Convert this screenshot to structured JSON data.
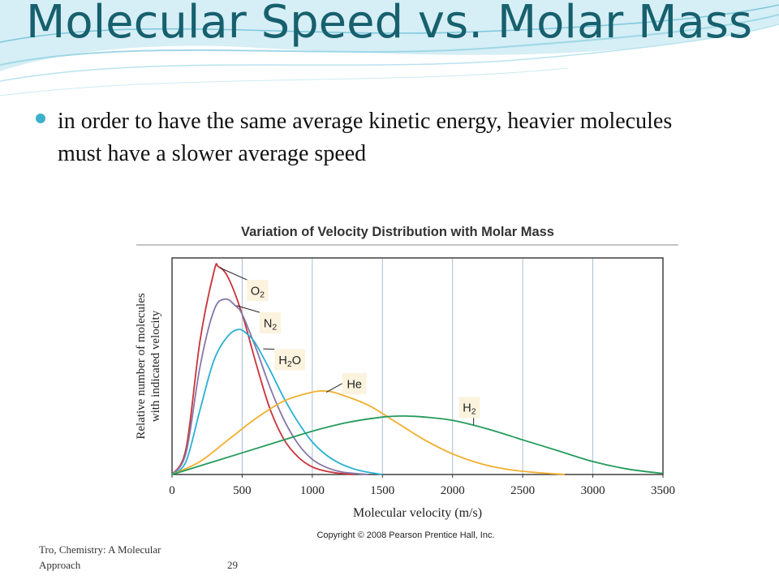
{
  "slide": {
    "title": "Molecular Speed vs. Molar Mass",
    "bullets": [
      "in order to have the same average kinetic energy, heavier molecules must have a slower average speed"
    ],
    "footer": "Tro, Chemistry: A Molecular Approach",
    "page_number": "29",
    "colors": {
      "title": "#17606e",
      "bullet": "#3bb2c9",
      "wave": "#9fd8e6"
    }
  },
  "chart_data": {
    "type": "line",
    "title": "Variation of Velocity Distribution with Molar Mass",
    "xlabel": "Molecular velocity (m/s)",
    "ylabel_lines": [
      "Relative number of molecules",
      "with indicated velocity"
    ],
    "copyright": "Copyright © 2008 Pearson Prentice Hall, Inc.",
    "xlim": [
      0,
      3500
    ],
    "ylim": [
      0,
      1
    ],
    "xticks": [
      0,
      500,
      1000,
      1500,
      2000,
      2500,
      3000,
      3500
    ],
    "grid": "vertical",
    "series": [
      {
        "label": "O",
        "subscript": "2",
        "color": "#c8333a",
        "points": [
          [
            0,
            0
          ],
          [
            100,
            0.12
          ],
          [
            200,
            0.62
          ],
          [
            300,
            0.94
          ],
          [
            330,
            0.96
          ],
          [
            400,
            0.91
          ],
          [
            500,
            0.74
          ],
          [
            600,
            0.51
          ],
          [
            700,
            0.3
          ],
          [
            800,
            0.16
          ],
          [
            900,
            0.08
          ],
          [
            1000,
            0.035
          ],
          [
            1100,
            0.015
          ],
          [
            1200,
            0.005
          ],
          [
            1300,
            0
          ]
        ]
      },
      {
        "label": "N",
        "subscript": "2",
        "color": "#8577a8",
        "points": [
          [
            0,
            0
          ],
          [
            100,
            0.1
          ],
          [
            200,
            0.5
          ],
          [
            300,
            0.76
          ],
          [
            380,
            0.81
          ],
          [
            450,
            0.78
          ],
          [
            500,
            0.74
          ],
          [
            600,
            0.58
          ],
          [
            700,
            0.4
          ],
          [
            800,
            0.25
          ],
          [
            900,
            0.14
          ],
          [
            1000,
            0.07
          ],
          [
            1100,
            0.033
          ],
          [
            1200,
            0.013
          ],
          [
            1300,
            0.005
          ],
          [
            1400,
            0
          ]
        ]
      },
      {
        "label": "H",
        "subscript": "2",
        "suffix": "O",
        "color": "#2ab0d3",
        "points": [
          [
            0,
            0
          ],
          [
            100,
            0.06
          ],
          [
            200,
            0.3
          ],
          [
            300,
            0.53
          ],
          [
            400,
            0.64
          ],
          [
            480,
            0.67
          ],
          [
            550,
            0.64
          ],
          [
            600,
            0.6
          ],
          [
            700,
            0.48
          ],
          [
            800,
            0.35
          ],
          [
            900,
            0.24
          ],
          [
            1000,
            0.15
          ],
          [
            1100,
            0.09
          ],
          [
            1200,
            0.05
          ],
          [
            1300,
            0.025
          ],
          [
            1400,
            0.01
          ],
          [
            1500,
            0
          ]
        ]
      },
      {
        "label": "He",
        "color": "#f2ae2e",
        "points": [
          [
            0,
            0
          ],
          [
            200,
            0.06
          ],
          [
            400,
            0.16
          ],
          [
            600,
            0.26
          ],
          [
            800,
            0.34
          ],
          [
            1000,
            0.38
          ],
          [
            1100,
            0.385
          ],
          [
            1200,
            0.37
          ],
          [
            1400,
            0.32
          ],
          [
            1600,
            0.24
          ],
          [
            1800,
            0.16
          ],
          [
            2000,
            0.095
          ],
          [
            2200,
            0.05
          ],
          [
            2400,
            0.023
          ],
          [
            2600,
            0.009
          ],
          [
            2800,
            0
          ]
        ]
      },
      {
        "label": "H",
        "subscript": "2",
        "color": "#239b5a",
        "points": [
          [
            0,
            0
          ],
          [
            250,
            0.05
          ],
          [
            500,
            0.1
          ],
          [
            750,
            0.15
          ],
          [
            1000,
            0.2
          ],
          [
            1250,
            0.24
          ],
          [
            1500,
            0.265
          ],
          [
            1650,
            0.27
          ],
          [
            1800,
            0.265
          ],
          [
            2000,
            0.25
          ],
          [
            2250,
            0.21
          ],
          [
            2500,
            0.16
          ],
          [
            2750,
            0.11
          ],
          [
            3000,
            0.06
          ],
          [
            3250,
            0.025
          ],
          [
            3500,
            0.005
          ]
        ]
      }
    ],
    "labels": [
      {
        "series": 0,
        "lx": 610,
        "ly": 0.85,
        "ax": 340,
        "ay": 0.955
      },
      {
        "series": 1,
        "lx": 700,
        "ly": 0.7,
        "ax": 460,
        "ay": 0.78
      },
      {
        "series": 2,
        "lx": 840,
        "ly": 0.53,
        "ax": 650,
        "ay": 0.58
      },
      {
        "series": 3,
        "lx": 1300,
        "ly": 0.42,
        "ax": 1100,
        "ay": 0.38
      },
      {
        "series": 4,
        "lx": 2120,
        "ly": 0.31,
        "ax": 2150,
        "ay": 0.23
      }
    ]
  }
}
